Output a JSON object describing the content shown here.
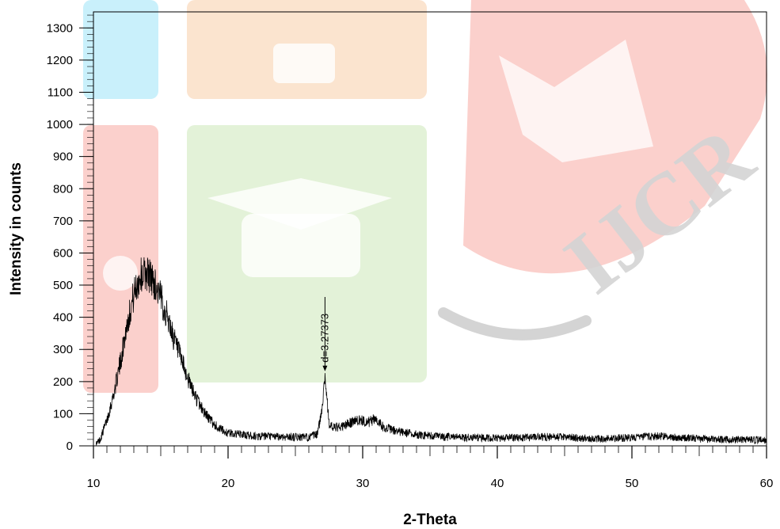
{
  "chart_data": {
    "type": "line",
    "title": "",
    "xlabel": "2-Theta",
    "ylabel": "Intensity in counts",
    "xlim": [
      10,
      60
    ],
    "ylim": [
      0,
      1350
    ],
    "x_ticks": [
      10,
      20,
      30,
      40,
      50,
      60
    ],
    "y_ticks": [
      0,
      100,
      200,
      300,
      400,
      500,
      600,
      700,
      800,
      900,
      1000,
      1100,
      1200,
      1300
    ],
    "grid": false,
    "series": [
      {
        "x": [
          10.2,
          10.5,
          11.0,
          11.5,
          12.0,
          12.5,
          13.0,
          13.5,
          14.0,
          14.5,
          15.0,
          15.5,
          16.0,
          16.5,
          17.0,
          17.5,
          18.0,
          18.5,
          19.0,
          19.5,
          20.0,
          21.0,
          22.0,
          24.0,
          26.0,
          26.6,
          26.9,
          27.2,
          27.5,
          27.8,
          28.5,
          29.5,
          30.5,
          31.0,
          31.5,
          32.5,
          34.0,
          36.0,
          40.0,
          44.0,
          48.0,
          52.0,
          56.0,
          60.0
        ],
        "y": [
          5,
          20,
          80,
          160,
          260,
          380,
          470,
          530,
          540,
          510,
          460,
          400,
          330,
          270,
          210,
          160,
          120,
          90,
          65,
          50,
          40,
          35,
          30,
          28,
          27,
          35,
          90,
          220,
          70,
          55,
          60,
          80,
          75,
          85,
          60,
          45,
          35,
          28,
          24,
          28,
          22,
          30,
          20,
          18
        ]
      }
    ],
    "annotations": [
      {
        "text": "d=3.27373",
        "x": 27.2,
        "y": 220
      }
    ],
    "watermark": {
      "text": "IJCR"
    },
    "colors": {
      "line": "#000000",
      "watermark_blue": "#c9f0fb",
      "watermark_orange": "#fbe4cf",
      "watermark_red": "#fbd0cc",
      "watermark_green": "#e3f2d8",
      "watermark_gray": "#d4d4d4"
    }
  }
}
